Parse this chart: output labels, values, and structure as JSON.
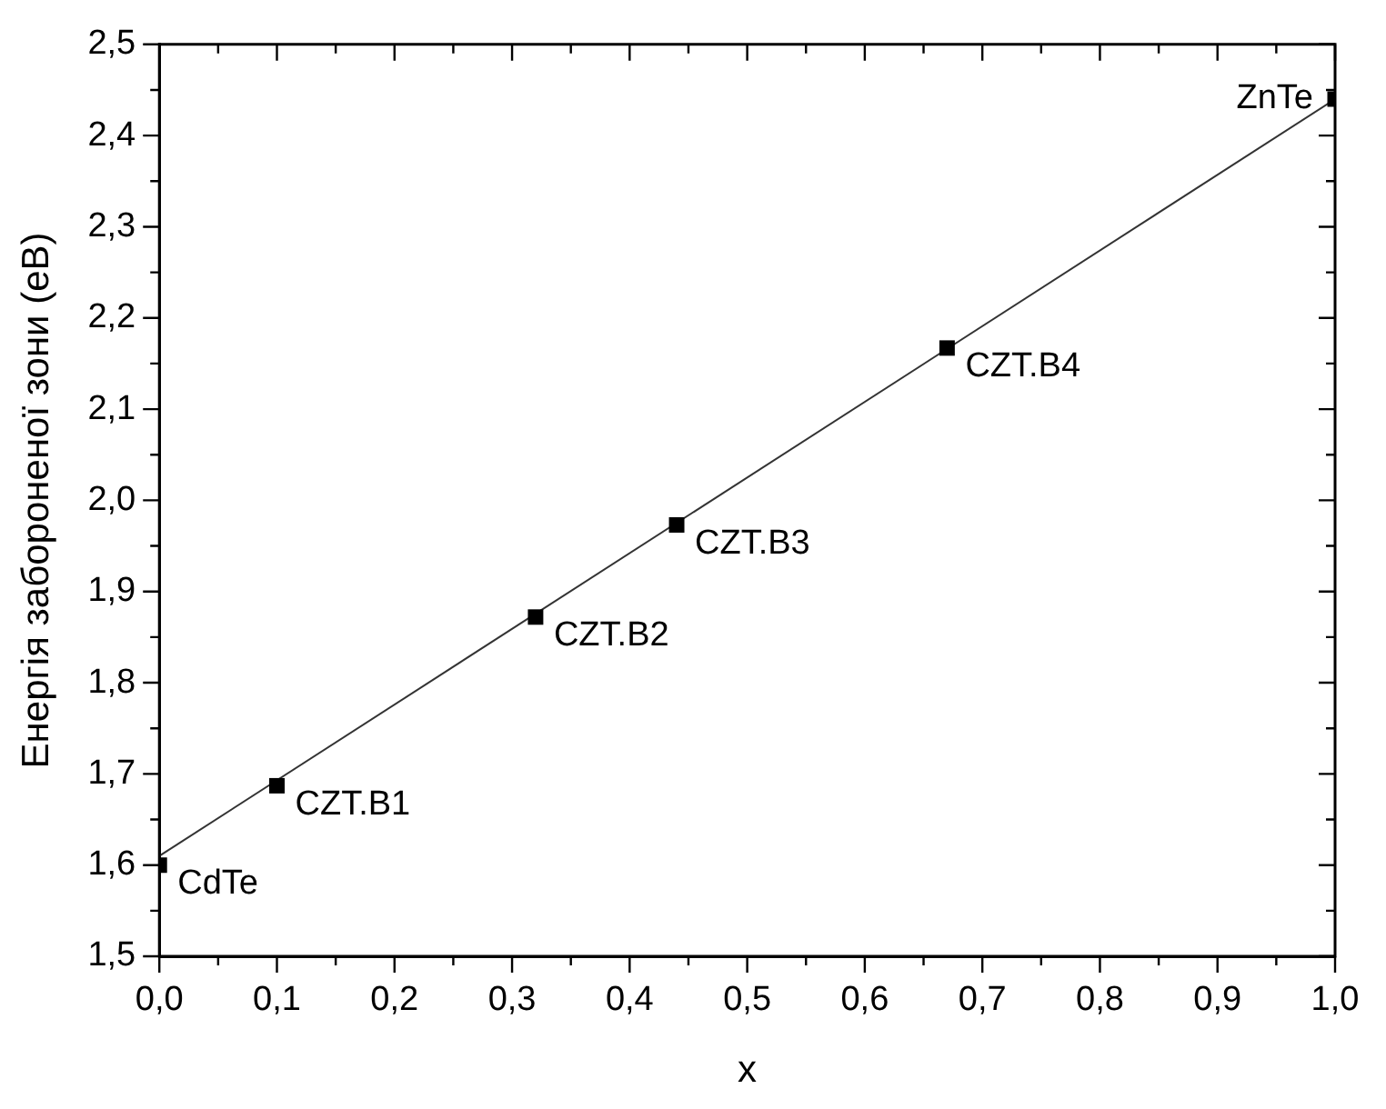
{
  "chart_data": {
    "type": "scatter",
    "xlabel": "x",
    "ylabel": "Енергія забороненої зони (еВ)",
    "series": [
      {
        "type": "scatter",
        "color": "#000000",
        "marker": "square",
        "x": [
          0,
          0.1,
          0.32,
          0.44,
          0.67,
          1.0
        ],
        "values": [
          1.6,
          1.687,
          1.872,
          1.973,
          2.167,
          2.44
        ]
      },
      {
        "type": "line",
        "color": "#333333",
        "marker": "none",
        "line_style": "solid",
        "x": [
          0,
          1.0
        ],
        "values": [
          1.61,
          2.44
        ]
      }
    ],
    "annotations": [
      {
        "text": "CdTe",
        "x": 0,
        "y": 1.6
      },
      {
        "text": "CZT.B1",
        "x": 0.1,
        "y": 1.687
      },
      {
        "text": "CZT.B2",
        "x": 0.32,
        "y": 1.872
      },
      {
        "text": "CZT.B3",
        "x": 0.44,
        "y": 1.973
      },
      {
        "text": "CZT.B4",
        "x": 0.67,
        "y": 2.167
      },
      {
        "text": "ZnTe",
        "x": 1.0,
        "y": 2.44
      }
    ],
    "xlim": [
      0,
      1.0
    ],
    "ylim": [
      1.5,
      2.5
    ],
    "xticks": [
      {
        "value": 0,
        "label": "0,0"
      },
      {
        "value": 0.05,
        "label": null
      },
      {
        "value": 0.1,
        "label": "0,1"
      },
      {
        "value": 0.15,
        "label": null
      },
      {
        "value": 0.2,
        "label": "0,2"
      },
      {
        "value": 0.25,
        "label": null
      },
      {
        "value": 0.3,
        "label": "0,3"
      },
      {
        "value": 0.35,
        "label": null
      },
      {
        "value": 0.4,
        "label": "0,4"
      },
      {
        "value": 0.45,
        "label": null
      },
      {
        "value": 0.5,
        "label": "0,5"
      },
      {
        "value": 0.55,
        "label": null
      },
      {
        "value": 0.6,
        "label": "0,6"
      },
      {
        "value": 0.65,
        "label": null
      },
      {
        "value": 0.7,
        "label": "0,7"
      },
      {
        "value": 0.75,
        "label": null
      },
      {
        "value": 0.8,
        "label": "0,8"
      },
      {
        "value": 0.85,
        "label": null
      },
      {
        "value": 0.9,
        "label": "0,9"
      },
      {
        "value": 0.95,
        "label": null
      },
      {
        "value": 1.0,
        "label": "1,0"
      }
    ],
    "yticks": [
      {
        "value": 1.5,
        "label": "1,5"
      },
      {
        "value": 1.55,
        "label": null
      },
      {
        "value": 1.6,
        "label": "1,6"
      },
      {
        "value": 1.65,
        "label": null
      },
      {
        "value": 1.7,
        "label": "1,7"
      },
      {
        "value": 1.75,
        "label": null
      },
      {
        "value": 1.8,
        "label": "1,8"
      },
      {
        "value": 1.85,
        "label": null
      },
      {
        "value": 1.9,
        "label": "1,9"
      },
      {
        "value": 1.95,
        "label": null
      },
      {
        "value": 2.0,
        "label": "2,0"
      },
      {
        "value": 2.05,
        "label": null
      },
      {
        "value": 2.1,
        "label": "2,1"
      },
      {
        "value": 2.15,
        "label": null
      },
      {
        "value": 2.2,
        "label": "2,2"
      },
      {
        "value": 2.25,
        "label": null
      },
      {
        "value": 2.3,
        "label": "2,3"
      },
      {
        "value": 2.35,
        "label": null
      },
      {
        "value": 2.4,
        "label": "2,4"
      },
      {
        "value": 2.45,
        "label": null
      },
      {
        "value": 2.5,
        "label": "2,5"
      }
    ],
    "grid": false,
    "legend": false
  }
}
